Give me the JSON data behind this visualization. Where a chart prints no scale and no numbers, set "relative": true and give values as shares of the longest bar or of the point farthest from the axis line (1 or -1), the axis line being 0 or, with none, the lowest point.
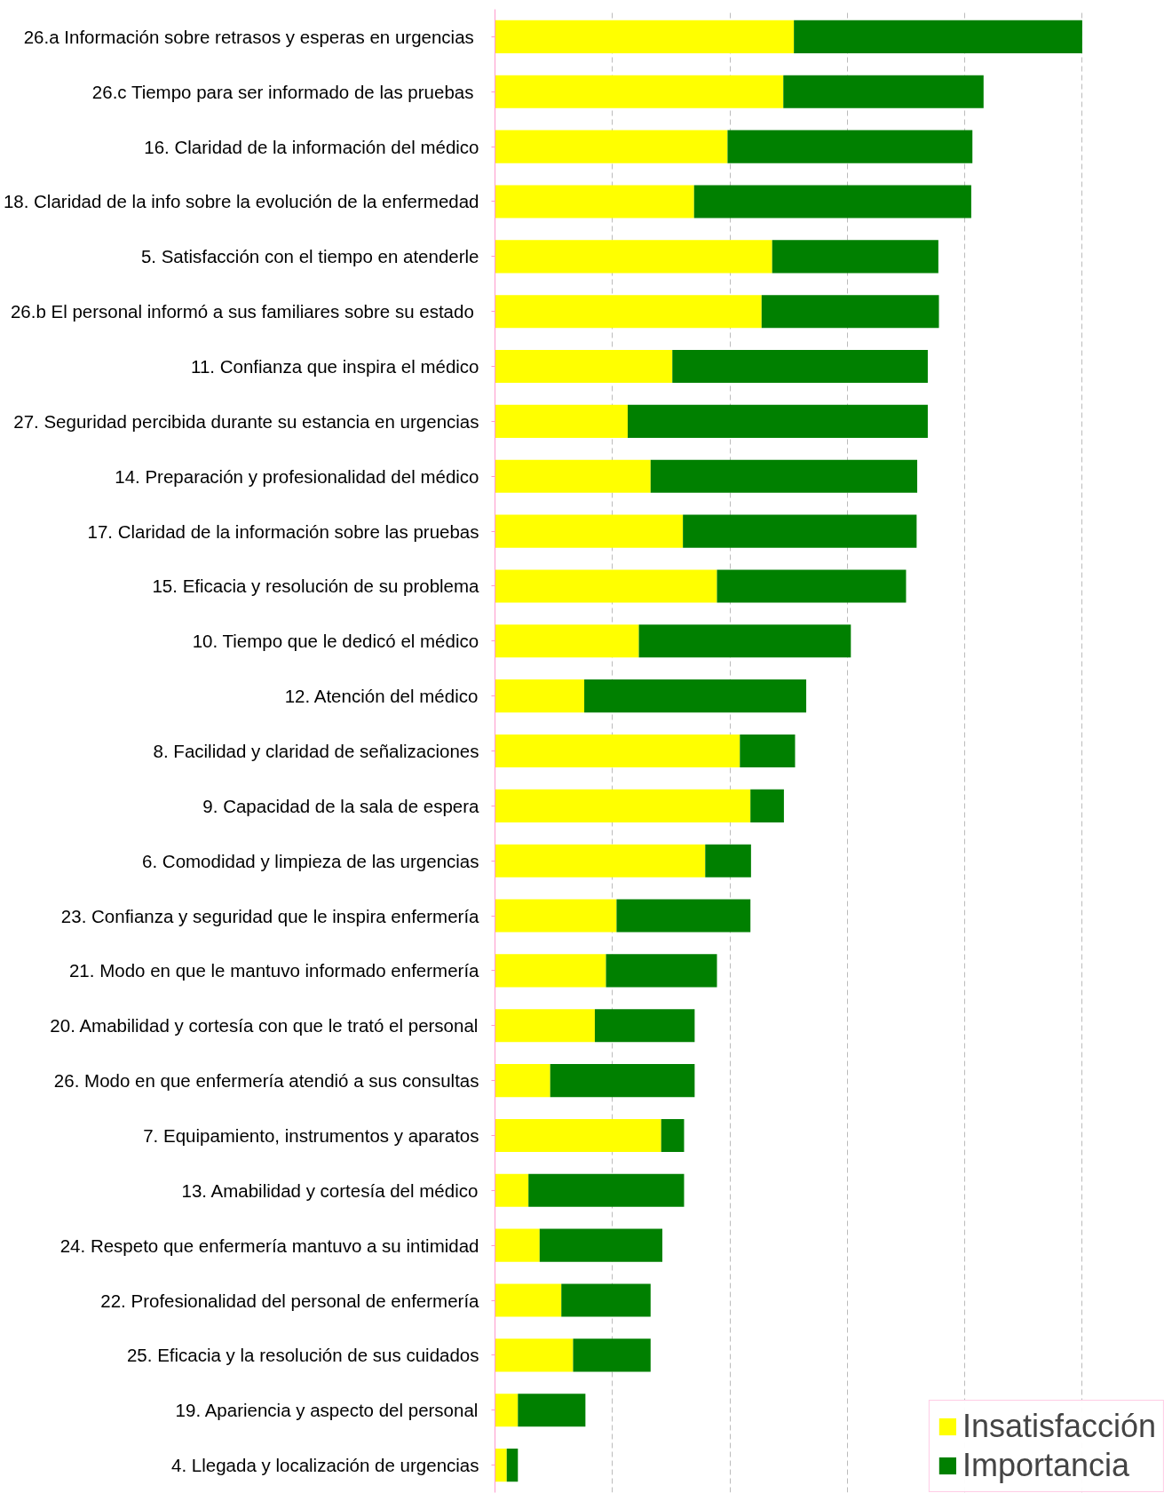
{
  "chart_data": {
    "type": "bar",
    "orientation": "horizontal",
    "stacked": true,
    "relative": true,
    "grid": "x",
    "legend": "bottom right",
    "categories": [
      "26.a  Información sobre retrasos y esperas en urgencias",
      "26.c  Tiempo para ser informado de las pruebas",
      "16. Claridad de la información del médico",
      "18. Claridad de la info sobre la evolución de la enfermedad",
      "5. Satisfacción con el tiempo en atenderle",
      "26.b  El personal informó a sus familiares sobre su estado",
      "11. Confianza que inspira el médico",
      "27. Seguridad percibida durante su estancia en urgencias",
      "14. Preparación y profesionalidad del médico",
      "17. Claridad de la información sobre las pruebas",
      "15. Eficacia y resolución de su problema",
      "10. Tiempo que le dedicó el médico",
      "12. Atención del médico",
      "8. Facilidad y claridad de señalizaciones",
      "9. Capacidad de la sala de espera",
      "6. Comodidad y limpieza de las urgencias",
      "23. Confianza y seguridad que le inspira enfermería",
      "21. Modo en que le mantuvo informado enfermería",
      "20. Amabilidad y cortesía con que le trató el personal",
      "26. Modo en que enfermería atendió a sus consultas",
      "7. Equipamiento, instrumentos y aparatos",
      "13. Amabilidad y cortesía del médico",
      "24. Respeto que enfermería mantuvo a su intimidad",
      "22. Profesionalidad del personal de enfermería",
      "25. Eficacia y la resolución de sus cuidados",
      "19. Apariencia y aspecto del personal",
      "4. Llegada y localización de urgencias"
    ],
    "series": [
      {
        "name": "Insatisfacción",
        "color": "#ffff00",
        "values": [
          0.509,
          0.491,
          0.396,
          0.339,
          0.472,
          0.454,
          0.302,
          0.226,
          0.265,
          0.32,
          0.378,
          0.245,
          0.152,
          0.417,
          0.435,
          0.358,
          0.207,
          0.189,
          0.17,
          0.094,
          0.283,
          0.057,
          0.076,
          0.113,
          0.133,
          0.039,
          0.02
        ]
      },
      {
        "name": "Importancia",
        "color": "#008000",
        "values": [
          0.491,
          0.341,
          0.417,
          0.472,
          0.283,
          0.302,
          0.435,
          0.511,
          0.454,
          0.398,
          0.322,
          0.361,
          0.378,
          0.094,
          0.057,
          0.078,
          0.228,
          0.189,
          0.17,
          0.246,
          0.039,
          0.265,
          0.209,
          0.152,
          0.132,
          0.115,
          0.019
        ]
      }
    ]
  }
}
